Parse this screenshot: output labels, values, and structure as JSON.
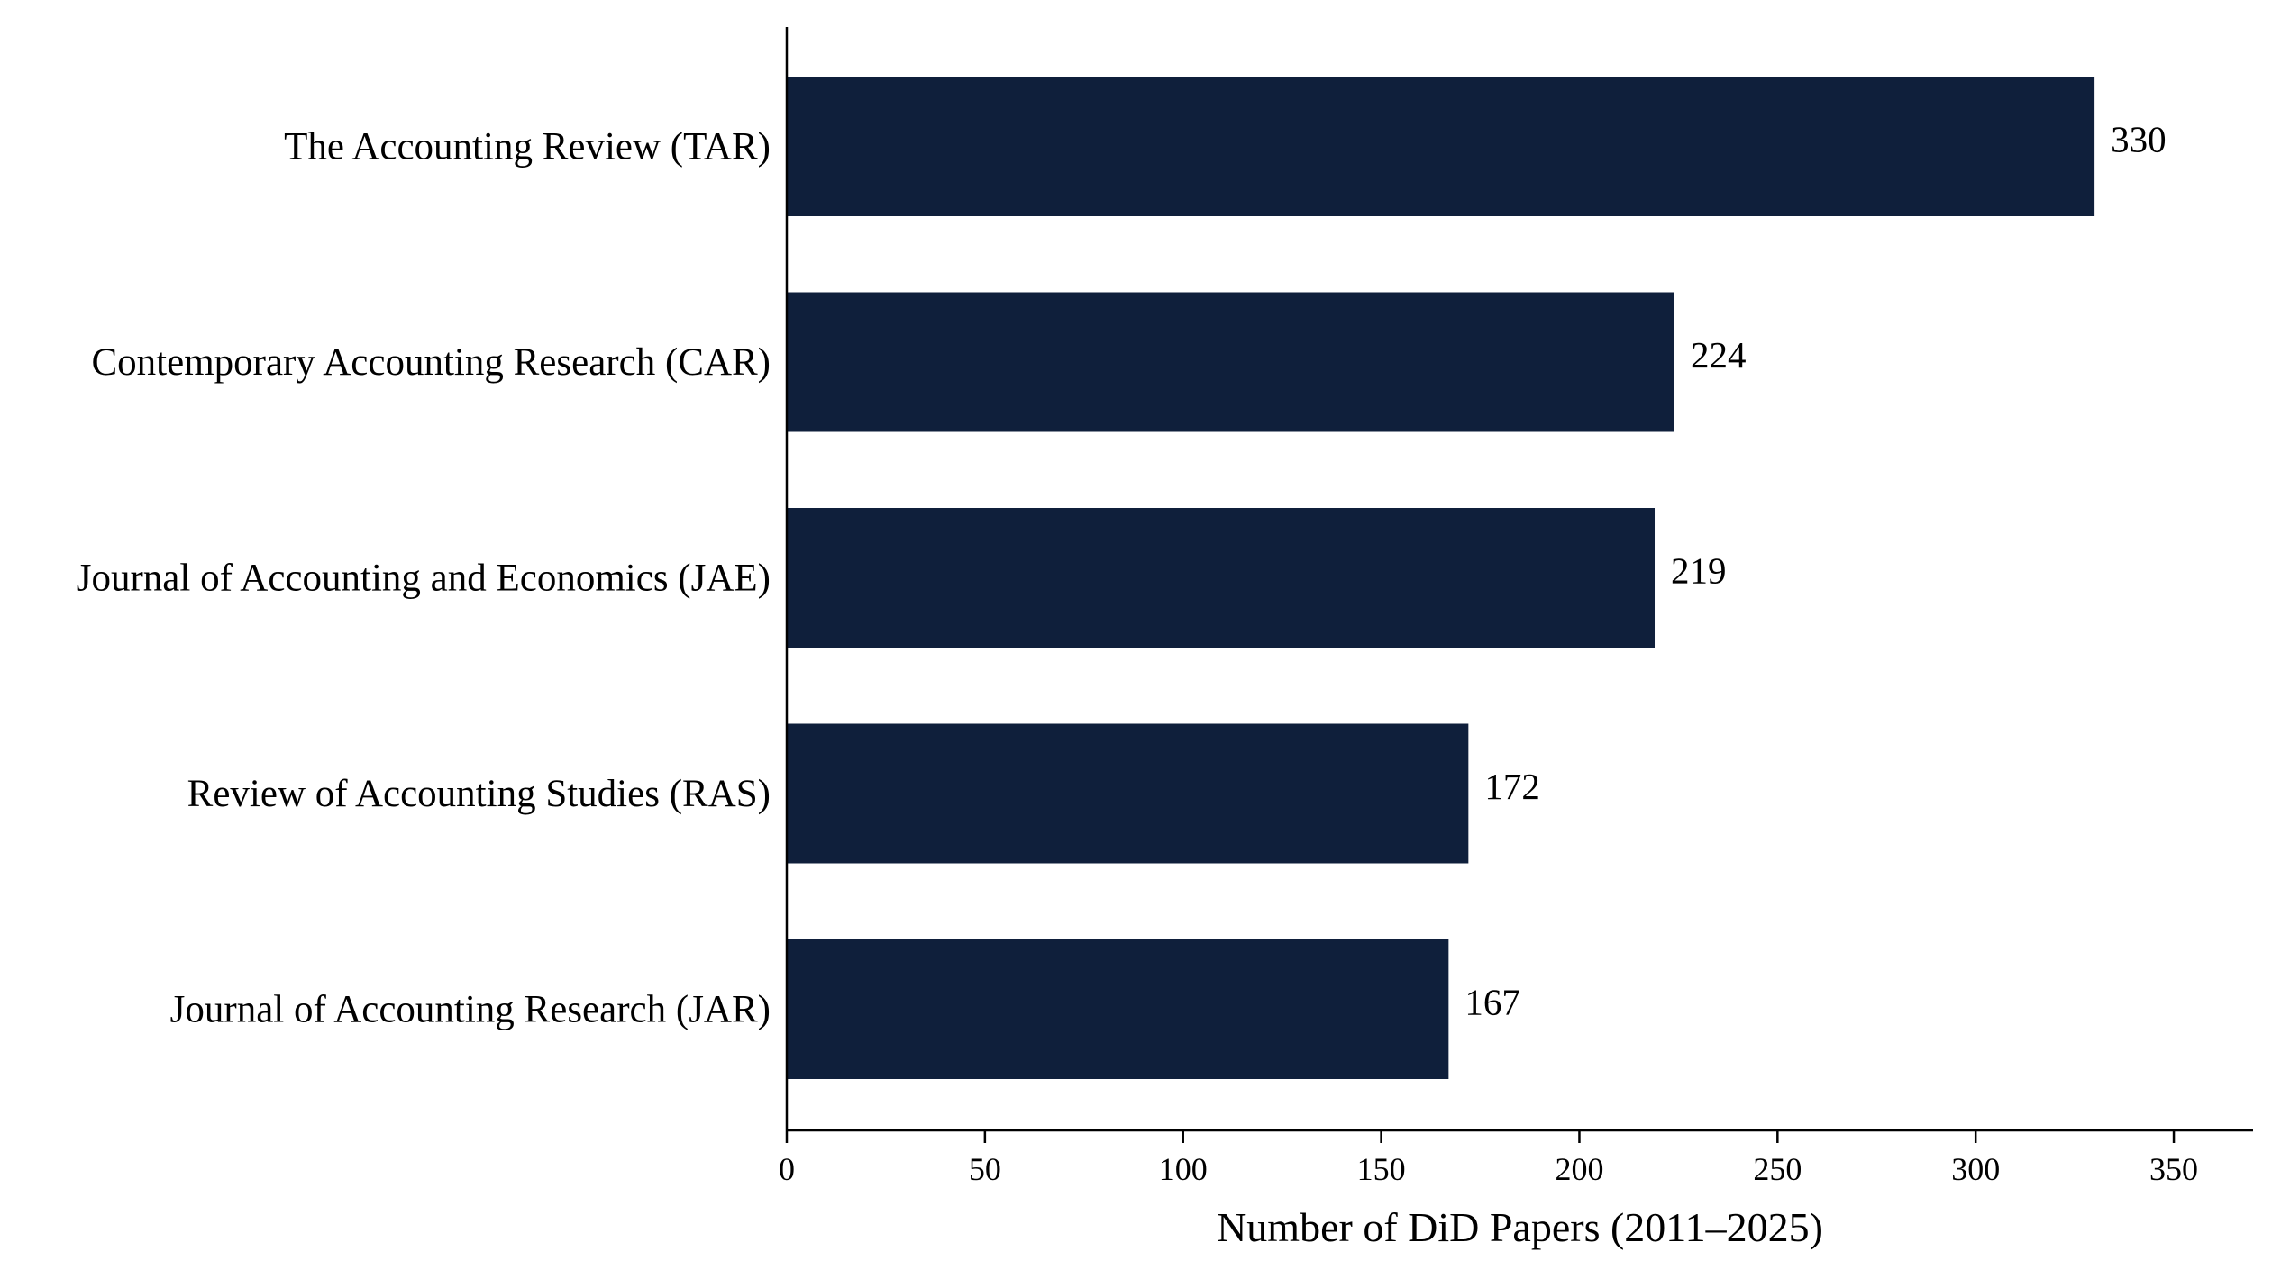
{
  "chart_data": {
    "type": "bar",
    "orientation": "horizontal",
    "categories": [
      "The Accounting Review (TAR)",
      "Contemporary Accounting Research (CAR)",
      "Journal of Accounting and Economics (JAE)",
      "Review of Accounting Studies (RAS)",
      "Journal of Accounting Research (JAR)"
    ],
    "values": [
      330,
      224,
      219,
      172,
      167
    ],
    "value_labels": [
      "330",
      "224",
      "219",
      "172",
      "167"
    ],
    "xlabel": "Number of DiD Papers (2011–2025)",
    "ylabel": "",
    "xlim": [
      0,
      370
    ],
    "xticks": [
      0,
      50,
      100,
      150,
      200,
      250,
      300,
      350
    ],
    "xtick_labels": [
      "0",
      "50",
      "100",
      "150",
      "200",
      "250",
      "300",
      "350"
    ],
    "bar_color": "#0f1f3b",
    "grid": false,
    "legend": "none"
  }
}
